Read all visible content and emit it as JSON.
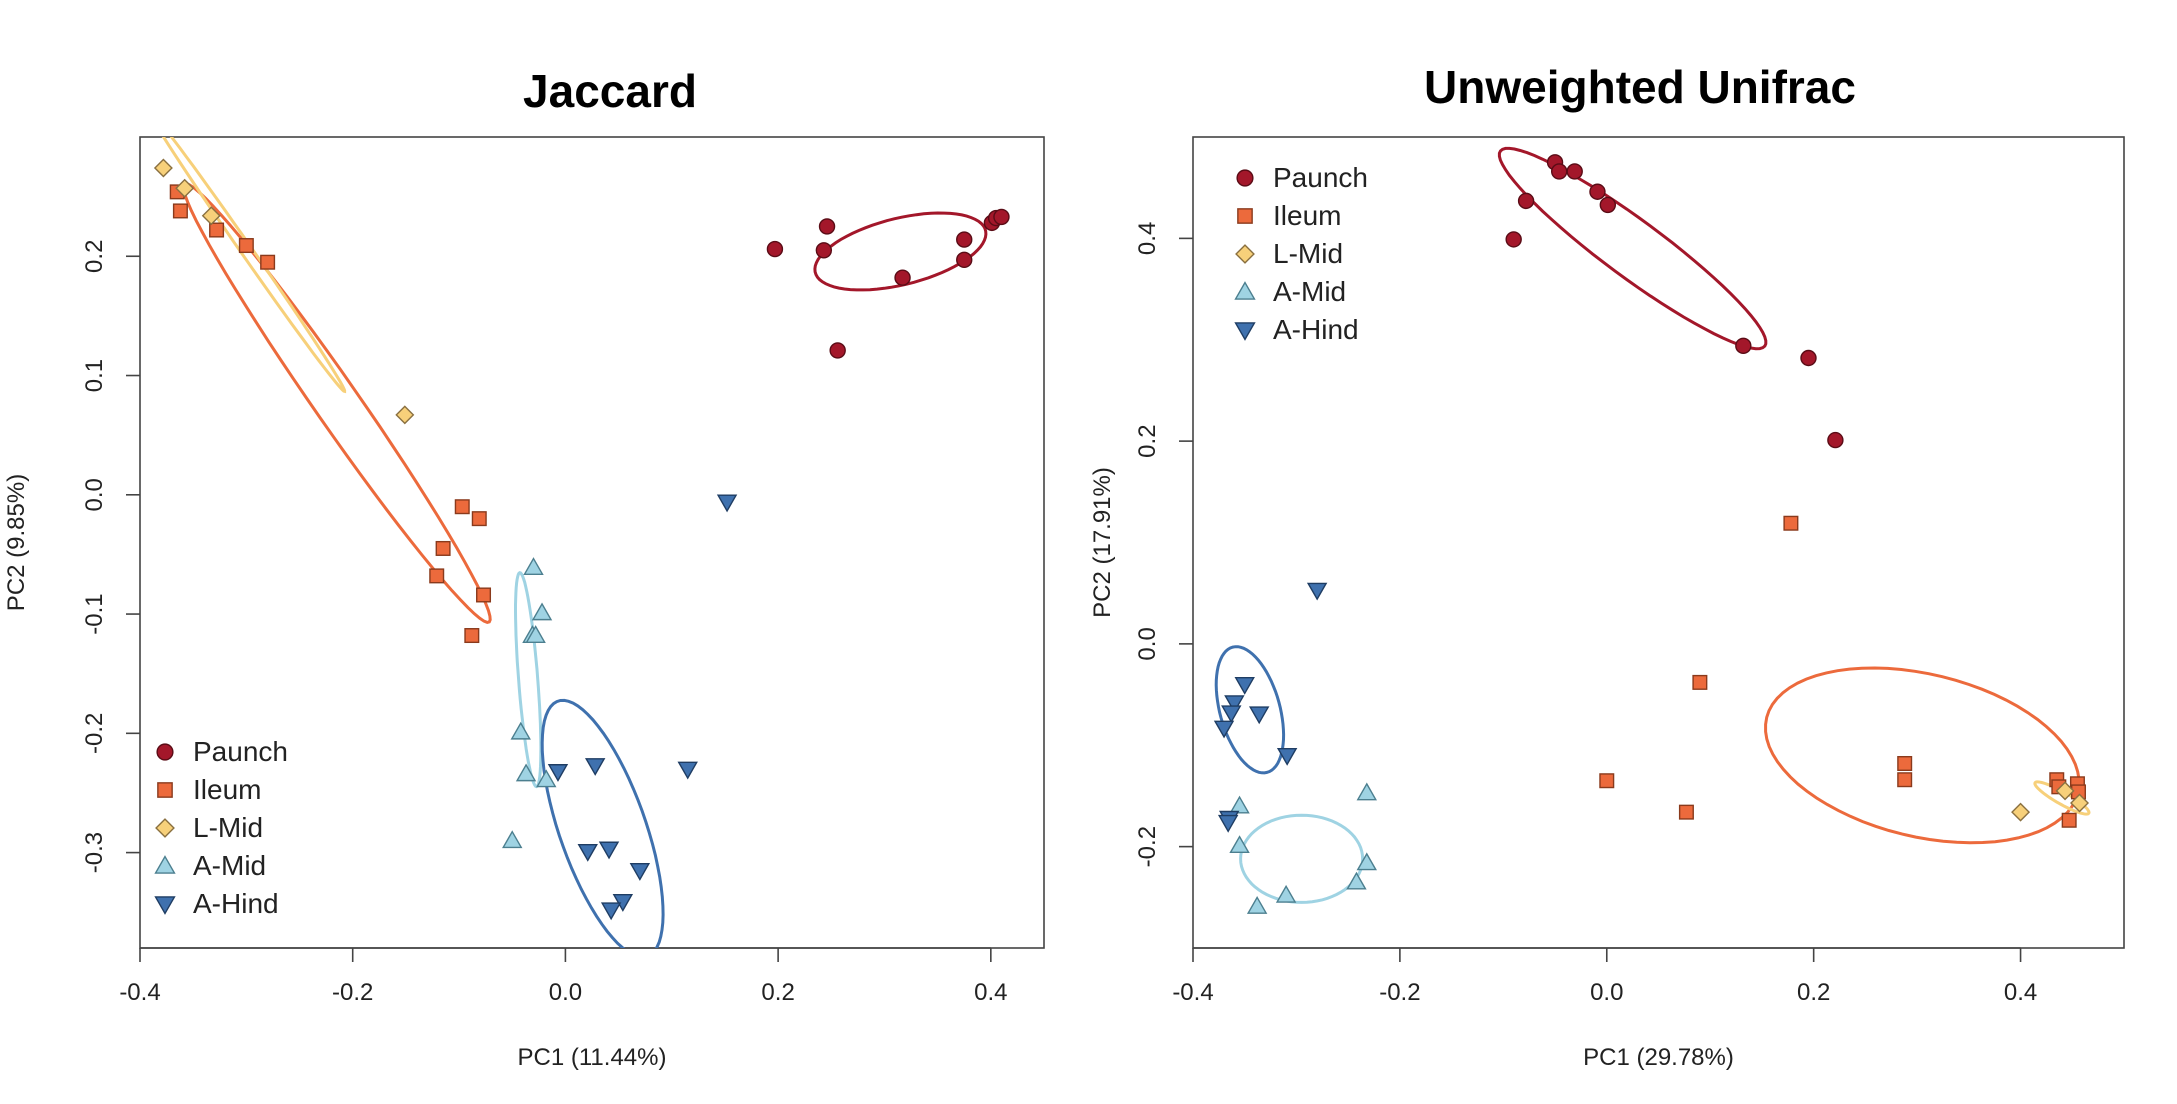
{
  "chart_data": [
    {
      "type": "scatter",
      "title": "Jaccard",
      "xlabel": "PC1 (11.44%)",
      "ylabel": "PC2 (9.85%)",
      "xlim": [
        -0.4,
        0.45
      ],
      "ylim": [
        -0.38,
        0.3
      ],
      "xticks": [
        -0.4,
        -0.2,
        0.0,
        0.2,
        0.4
      ],
      "xtick_labels": [
        "-0.4",
        "-0.2",
        "0.0",
        "0.2",
        "0.4"
      ],
      "yticks": [
        -0.3,
        -0.2,
        -0.1,
        0.0,
        0.1,
        0.2
      ],
      "ytick_labels": [
        "-0.3",
        "-0.2",
        "-0.1",
        "0.0",
        "0.1",
        "0.2"
      ],
      "grid": false,
      "legend": "bottom-left",
      "series": [
        {
          "name": "Paunch",
          "marker": "circle",
          "color": "#a3172a",
          "points": [
            [
              0.197,
              0.206
            ],
            [
              0.243,
              0.205
            ],
            [
              0.246,
              0.225
            ],
            [
              0.256,
              0.121
            ],
            [
              0.317,
              0.182
            ],
            [
              0.375,
              0.214
            ],
            [
              0.375,
              0.197
            ],
            [
              0.401,
              0.228
            ],
            [
              0.405,
              0.232
            ],
            [
              0.41,
              0.233
            ]
          ],
          "ellipse": {
            "cx": 0.315,
            "cy": 0.204,
            "rx": 0.082,
            "ry": 0.028,
            "angle_deg": 12
          }
        },
        {
          "name": "Ileum",
          "marker": "square",
          "color": "#ec6a3c",
          "points": [
            [
              -0.365,
              0.254
            ],
            [
              -0.362,
              0.238
            ],
            [
              -0.328,
              0.222
            ],
            [
              -0.3,
              0.209
            ],
            [
              -0.28,
              0.195
            ],
            [
              -0.097,
              -0.01
            ],
            [
              -0.081,
              -0.02
            ],
            [
              -0.115,
              -0.045
            ],
            [
              -0.121,
              -0.068
            ],
            [
              -0.077,
              -0.084
            ],
            [
              -0.088,
              -0.118
            ]
          ],
          "ellipse": {
            "cx": -0.215,
            "cy": 0.077,
            "rx": 0.233,
            "ry": 0.02,
            "angle_deg": -52
          }
        },
        {
          "name": "L-Mid",
          "marker": "diamond",
          "color": "#f7d07a",
          "points": [
            [
              -0.378,
              0.274
            ],
            [
              -0.358,
              0.257
            ],
            [
              -0.333,
              0.234
            ],
            [
              -0.151,
              0.067
            ]
          ],
          "ellipse": {
            "cx": -0.3,
            "cy": 0.205,
            "rx": 0.15,
            "ry": 0.005,
            "angle_deg": -52
          }
        },
        {
          "name": "A-Mid",
          "marker": "triangle-up",
          "color": "#9fd3e3",
          "points": [
            [
              -0.03,
              -0.061
            ],
            [
              -0.022,
              -0.099
            ],
            [
              -0.031,
              -0.118
            ],
            [
              -0.028,
              -0.118
            ],
            [
              -0.042,
              -0.199
            ],
            [
              -0.037,
              -0.234
            ],
            [
              -0.018,
              -0.239
            ],
            [
              -0.05,
              -0.29
            ]
          ],
          "ellipse": {
            "cx": -0.035,
            "cy": -0.155,
            "rx": 0.09,
            "ry": 0.009,
            "angle_deg": -85
          }
        },
        {
          "name": "A-Hind",
          "marker": "triangle-down",
          "color": "#3f71ae",
          "points": [
            [
              0.152,
              -0.006
            ],
            [
              0.028,
              -0.227
            ],
            [
              0.115,
              -0.23
            ],
            [
              -0.007,
              -0.232
            ],
            [
              0.021,
              -0.299
            ],
            [
              0.041,
              -0.297
            ],
            [
              0.07,
              -0.315
            ],
            [
              0.054,
              -0.341
            ],
            [
              0.043,
              -0.348
            ]
          ],
          "ellipse": {
            "cx": 0.035,
            "cy": -0.28,
            "rx": 0.115,
            "ry": 0.04,
            "angle_deg": -68
          }
        }
      ]
    },
    {
      "type": "scatter",
      "title": "Unweighted Unifrac",
      "xlabel": "PC1 (29.78%)",
      "ylabel": "PC2 (17.91%)",
      "xlim": [
        -0.4,
        0.5
      ],
      "ylim": [
        -0.3,
        0.5
      ],
      "xticks": [
        -0.4,
        -0.2,
        0.0,
        0.2,
        0.4
      ],
      "xtick_labels": [
        "-0.4",
        "-0.2",
        "0.0",
        "0.2",
        "0.4"
      ],
      "yticks": [
        -0.2,
        0.0,
        0.2,
        0.4
      ],
      "ytick_labels": [
        "-0.2",
        "0.0",
        "0.2",
        "0.4"
      ],
      "grid": false,
      "legend": "top-left",
      "series": [
        {
          "name": "Paunch",
          "marker": "circle",
          "color": "#a3172a",
          "points": [
            [
              -0.09,
              0.399
            ],
            [
              -0.078,
              0.437
            ],
            [
              -0.05,
              0.475
            ],
            [
              -0.046,
              0.466
            ],
            [
              -0.031,
              0.466
            ],
            [
              -0.009,
              0.446
            ],
            [
              0.001,
              0.433
            ],
            [
              0.132,
              0.294
            ],
            [
              0.195,
              0.282
            ],
            [
              0.221,
              0.201
            ]
          ],
          "ellipse": {
            "cx": 0.025,
            "cy": 0.39,
            "rx": 0.16,
            "ry": 0.028,
            "angle_deg": -37
          }
        },
        {
          "name": "Ileum",
          "marker": "square",
          "color": "#ec6a3c",
          "points": [
            [
              0.178,
              0.119
            ],
            [
              0.09,
              -0.038
            ],
            [
              0.0,
              -0.135
            ],
            [
              0.077,
              -0.166
            ],
            [
              0.288,
              -0.118
            ],
            [
              0.288,
              -0.134
            ],
            [
              0.435,
              -0.134
            ],
            [
              0.437,
              -0.141
            ],
            [
              0.455,
              -0.138
            ],
            [
              0.456,
              -0.146
            ],
            [
              0.447,
              -0.174
            ]
          ],
          "ellipse": {
            "cx": 0.305,
            "cy": -0.11,
            "rx": 0.155,
            "ry": 0.08,
            "angle_deg": -14
          }
        },
        {
          "name": "L-Mid",
          "marker": "diamond",
          "color": "#f7d07a",
          "points": [
            [
              0.4,
              -0.166
            ],
            [
              0.443,
              -0.145
            ],
            [
              0.457,
              -0.157
            ]
          ],
          "ellipse": {
            "cx": 0.44,
            "cy": -0.152,
            "rx": 0.03,
            "ry": 0.006,
            "angle_deg": -30
          }
        },
        {
          "name": "A-Mid",
          "marker": "triangle-up",
          "color": "#9fd3e3",
          "points": [
            [
              -0.232,
              -0.147
            ],
            [
              -0.355,
              -0.16
            ],
            [
              -0.355,
              -0.199
            ],
            [
              -0.232,
              -0.216
            ],
            [
              -0.242,
              -0.235
            ],
            [
              -0.31,
              -0.248
            ],
            [
              -0.338,
              -0.259
            ]
          ],
          "ellipse": {
            "cx": -0.295,
            "cy": -0.212,
            "rx": 0.059,
            "ry": 0.043,
            "angle_deg": 0
          }
        },
        {
          "name": "A-Hind",
          "marker": "triangle-down",
          "color": "#3f71ae",
          "points": [
            [
              -0.28,
              0.053
            ],
            [
              -0.35,
              -0.04
            ],
            [
              -0.36,
              -0.058
            ],
            [
              -0.336,
              -0.069
            ],
            [
              -0.363,
              -0.068
            ],
            [
              -0.37,
              -0.083
            ],
            [
              -0.309,
              -0.11
            ],
            [
              -0.365,
              -0.172
            ],
            [
              -0.366,
              -0.176
            ]
          ],
          "ellipse": {
            "cx": -0.345,
            "cy": -0.065,
            "rx": 0.064,
            "ry": 0.029,
            "angle_deg": -75
          }
        }
      ]
    }
  ]
}
